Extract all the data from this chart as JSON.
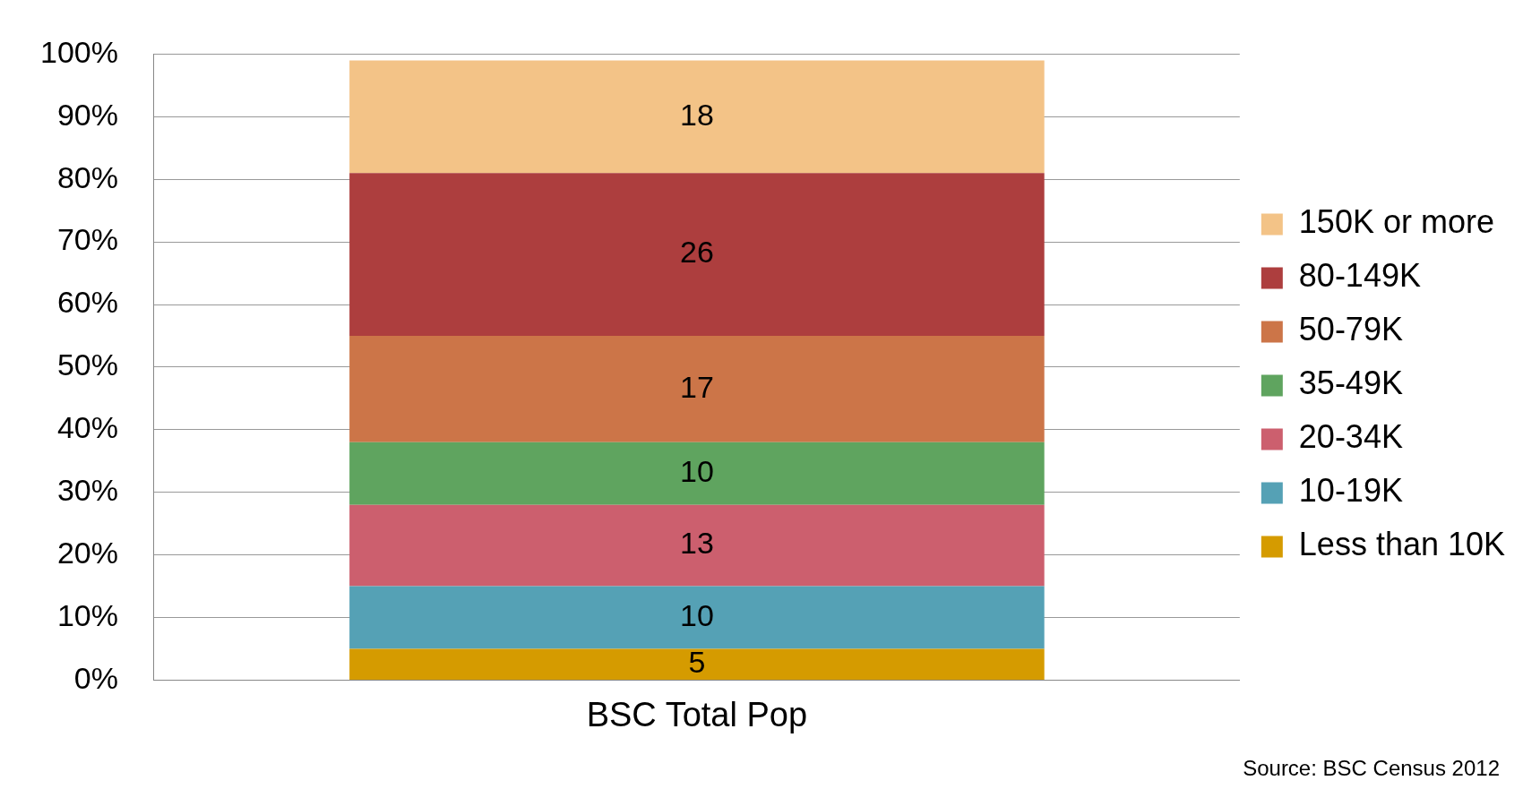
{
  "chart_data": {
    "type": "bar",
    "stacked": true,
    "categories": [
      "BSC Total Pop"
    ],
    "series": [
      {
        "name": "Less than 10K",
        "color": "#d59b00",
        "values": [
          5
        ]
      },
      {
        "name": "10-19K",
        "color": "#55a1b5",
        "values": [
          10
        ]
      },
      {
        "name": "20-34K",
        "color": "#cc5f6e",
        "values": [
          13
        ]
      },
      {
        "name": "35-49K",
        "color": "#5fa45f",
        "values": [
          10
        ]
      },
      {
        "name": "50-79K",
        "color": "#cc7548",
        "values": [
          17
        ]
      },
      {
        "name": "80-149K",
        "color": "#ad3e3e",
        "values": [
          26
        ]
      },
      {
        "name": "150K or more",
        "color": "#f3c387",
        "values": [
          18
        ]
      }
    ],
    "ylim": [
      0,
      100
    ],
    "yticks": [
      {
        "value": 0,
        "label": "0%"
      },
      {
        "value": 10,
        "label": "10%"
      },
      {
        "value": 20,
        "label": "20%"
      },
      {
        "value": 30,
        "label": "30%"
      },
      {
        "value": 40,
        "label": "40%"
      },
      {
        "value": 50,
        "label": "50%"
      },
      {
        "value": 60,
        "label": "60%"
      },
      {
        "value": 70,
        "label": "70%"
      },
      {
        "value": 80,
        "label": "80%"
      },
      {
        "value": 90,
        "label": "90%"
      },
      {
        "value": 100,
        "label": "100%"
      }
    ],
    "grid": "y",
    "legend": "right",
    "data_labels": true,
    "annotations": [
      "Source: BSC Census 2012"
    ]
  }
}
